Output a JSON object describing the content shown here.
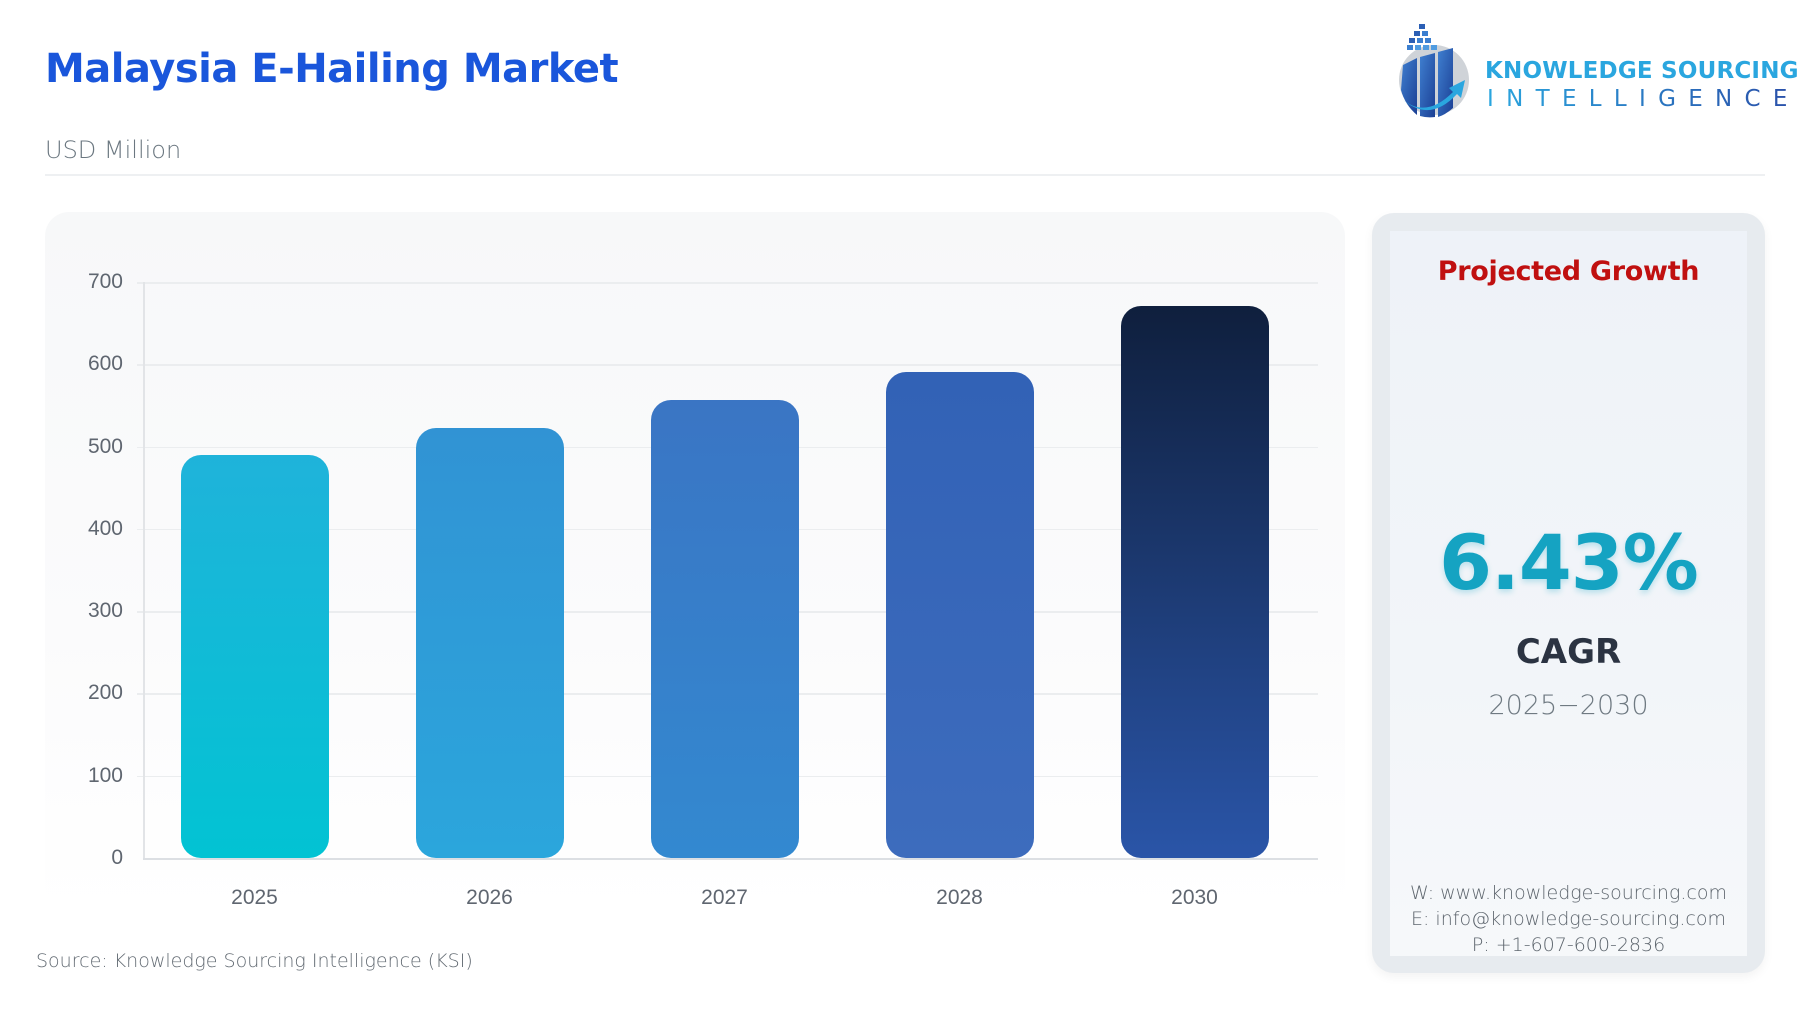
{
  "header": {
    "title": "Malaysia E-Hailing Market",
    "unit": "USD Million",
    "logo": {
      "line1": "KNOWLEDGE SOURCING",
      "line2": "INTELLIGENCE",
      "icon": "bar-chart-arrow-globe-icon"
    }
  },
  "colors": {
    "title": "#1a56db",
    "projected_growth": "#c01010",
    "cagr_value": "#15a3c2",
    "bars": [
      {
        "top": "#1fb3da",
        "bottom": "#02c3d3"
      },
      {
        "top": "#3193d4",
        "bottom": "#2ba6dc"
      },
      {
        "top": "#3a75c4",
        "bottom": "#3389d0"
      },
      {
        "top": "#3262b6",
        "bottom": "#3d6cbd"
      },
      {
        "top": "#0f1f3d",
        "bottom": "#2a55a8"
      }
    ]
  },
  "chart_data": {
    "type": "bar",
    "title": "Malaysia E-Hailing Market",
    "subtitle": "USD Million",
    "xlabel": "",
    "ylabel": "USD Million",
    "categories": [
      "2025",
      "2026",
      "2027",
      "2028",
      "2030"
    ],
    "values": [
      490,
      522,
      556,
      591,
      671
    ],
    "ylim": [
      0,
      700
    ],
    "yticks": [
      0,
      100,
      200,
      300,
      400,
      500,
      600,
      700
    ],
    "grid": true,
    "legend": null
  },
  "panel": {
    "heading": "Projected Growth",
    "cagr_value": "6.43%",
    "cagr_label": "CAGR",
    "period": "2025−2030",
    "contact": {
      "web": "W: www.knowledge-sourcing.com",
      "email": "E: info@knowledge-sourcing.com",
      "phone": "P: +1-607-600-2836"
    }
  },
  "footer": {
    "source": "Source: Knowledge Sourcing Intelligence (KSI)"
  }
}
